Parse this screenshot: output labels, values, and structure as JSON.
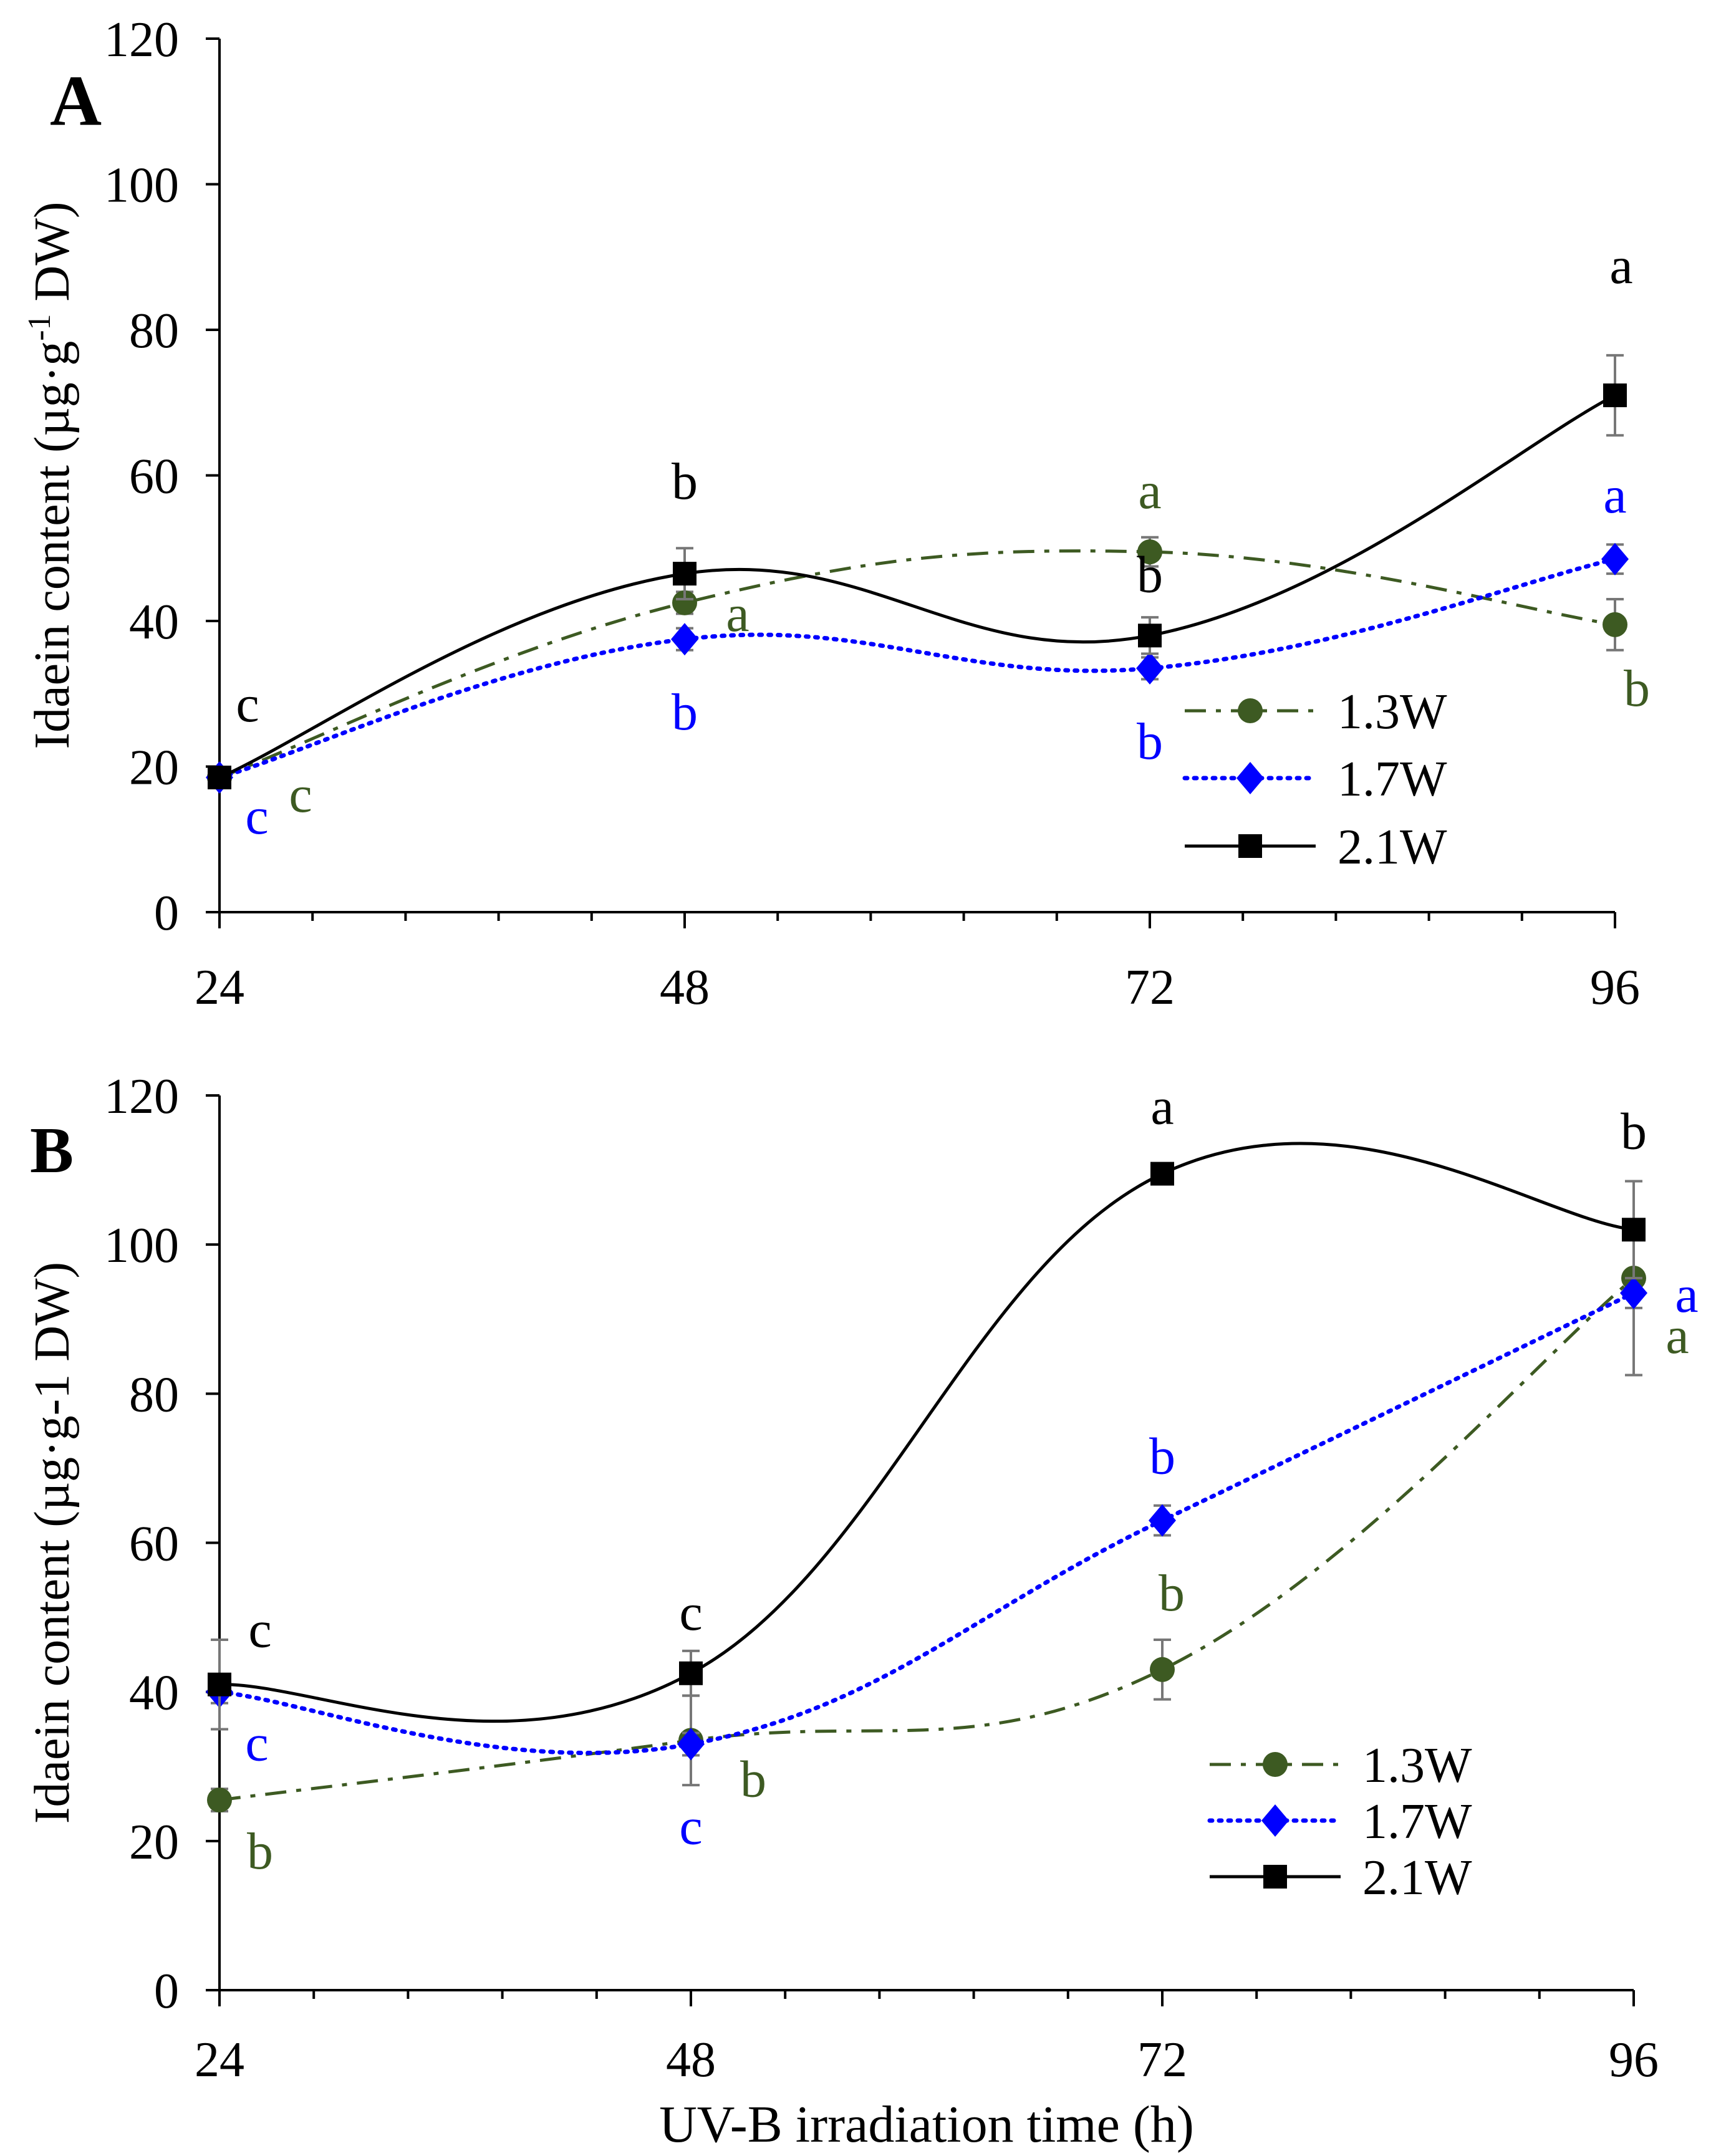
{
  "chart_data": [
    {
      "panel_label": "A",
      "type": "line",
      "x": [
        24,
        48,
        72,
        96
      ],
      "xlim": [
        24,
        96
      ],
      "xticks": [
        "24",
        "48",
        "72",
        "96"
      ],
      "ylim": [
        0,
        120
      ],
      "yticks": [
        "0",
        "20",
        "40",
        "60",
        "80",
        "100",
        "120"
      ],
      "ylabel_main": "Idaein content (µg·g",
      "ylabel_sup": "-1",
      "ylabel_tail": " DW)",
      "xlabel": "",
      "legend_position": "bottom-right",
      "series": [
        {
          "name": "1.3W",
          "color": "#3d5a22",
          "marker": "circle",
          "dash": "dashdot",
          "values": [
            18.5,
            42.5,
            49.5,
            39.5
          ],
          "errors": [
            0.8,
            1.5,
            2.0,
            3.5
          ],
          "letters": [
            "c",
            "a",
            "a",
            "b"
          ]
        },
        {
          "name": "1.7W",
          "color": "#0000ff",
          "marker": "diamond",
          "dash": "dotted",
          "values": [
            18.5,
            37.5,
            33.5,
            48.5
          ],
          "errors": [
            0.8,
            1.5,
            1.5,
            2.0
          ],
          "letters": [
            "c",
            "b",
            "b",
            "a"
          ]
        },
        {
          "name": "2.1W",
          "color": "#000000",
          "marker": "square",
          "dash": "solid",
          "values": [
            18.5,
            46.5,
            38.0,
            71.0
          ],
          "errors": [
            1.0,
            3.5,
            2.5,
            5.5
          ],
          "letters": [
            "c",
            "b",
            "b",
            "a"
          ]
        }
      ]
    },
    {
      "panel_label": "B",
      "type": "line",
      "x": [
        24,
        48,
        72,
        96
      ],
      "xlim": [
        24,
        96
      ],
      "xticks": [
        "24",
        "48",
        "72",
        "96"
      ],
      "ylim": [
        0,
        120
      ],
      "yticks": [
        "0",
        "20",
        "40",
        "60",
        "80",
        "100",
        "120"
      ],
      "ylabel_main": "Idaein content (µg·g-1 DW)",
      "xlabel": "UV-B irradiation time (h)",
      "legend_position": "bottom-right",
      "series": [
        {
          "name": "1.3W",
          "color": "#3d5a22",
          "marker": "circle",
          "dash": "dashdot",
          "values": [
            25.5,
            33.5,
            43.0,
            95.5
          ],
          "errors": [
            1.5,
            6.0,
            4.0,
            13.0
          ],
          "letters": [
            "b",
            "b",
            "b",
            "a"
          ]
        },
        {
          "name": "1.7W",
          "color": "#0000ff",
          "marker": "diamond",
          "dash": "dotted",
          "values": [
            40.0,
            33.0,
            63.0,
            93.5
          ],
          "errors": [
            1.5,
            1.5,
            2.0,
            2.0
          ],
          "letters": [
            "c",
            "c",
            "b",
            "a"
          ]
        },
        {
          "name": "2.1W",
          "color": "#000000",
          "marker": "square",
          "dash": "solid",
          "values": [
            41.0,
            42.5,
            109.5,
            102.0
          ],
          "errors": [
            6.0,
            3.0,
            1.0,
            6.5
          ],
          "letters": [
            "c",
            "c",
            "a",
            "b"
          ]
        }
      ]
    }
  ]
}
